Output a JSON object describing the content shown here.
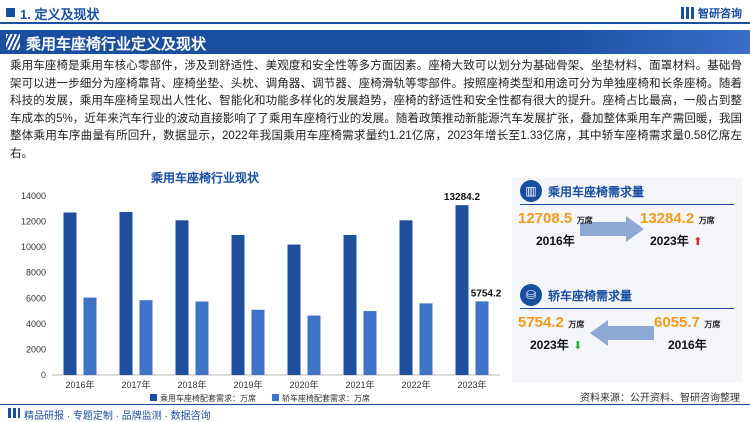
{
  "header": {
    "section_title": "1. 定义及现状",
    "brand": "智研咨询"
  },
  "banner": {
    "title": "乘用车座椅行业定义及现状"
  },
  "body_text": "乘用车座椅是乘用车核心零部件，涉及到舒适性、美观度和安全性等多方面因素。座椅大致可以划分为基础骨架、坐垫材料、面罩材料。基础骨架可以进一步细分为座椅靠背、座椅坐垫、头枕、调角器、调节器、座椅滑轨等零部件。按照座椅类型和用途可分为单独座椅和长条座椅。随着科技的发展，乘用车座椅呈现出人性化、智能化和功能多样化的发展趋势，座椅的舒适性和安全性都有很大的提升。座椅占比最高，一般占到整车成本的5%，近年来汽车行业的波动直接影响了了乘用车座椅行业的发展。随着政策推动新能源汽车发展扩张，叠加整体乘用车产需回暖，我国整体乘用车序曲量有所回升，数据显示，2022年我国乘用车座椅需求量约1.21亿席，2023年增长至1.33亿席，其中轿车座椅需求量0.58亿席左右。",
  "chart_data": {
    "type": "bar",
    "title": "乘用车座椅行业现状",
    "categories": [
      "2016年",
      "2017年",
      "2018年",
      "2019年",
      "2020年",
      "2021年",
      "2022年",
      "2023年"
    ],
    "series": [
      {
        "name": "乘用车座椅配套需求：万席",
        "values": [
          12708.5,
          12750,
          12100,
          10950,
          10200,
          10950,
          12100,
          13284.2
        ],
        "color": "#1d4f9c"
      },
      {
        "name": "轿车座椅配套需求：万席",
        "values": [
          6055.7,
          5850,
          5750,
          5100,
          4650,
          5000,
          5600,
          5754.2
        ],
        "color": "#3f73c6"
      }
    ],
    "data_labels": [
      {
        "series": 0,
        "index": 7,
        "text": "13284.2"
      },
      {
        "series": 1,
        "index": 7,
        "text": "5754.2"
      }
    ],
    "ylim": [
      0,
      14000
    ],
    "yticks": [
      0,
      2000,
      4000,
      6000,
      8000,
      10000,
      12000,
      14000
    ],
    "grid": false,
    "legend": "bottom"
  },
  "cards": [
    {
      "title": "乘用车座椅需求量",
      "from_value": "12708.5",
      "from_unit": "万席",
      "from_year": "2016年",
      "to_value": "13284.2",
      "to_unit": "万席",
      "to_year": "2023年",
      "trend": "up"
    },
    {
      "title": "轿车座椅需求量",
      "from_value": "5754.2",
      "from_unit": "万席",
      "from_year": "2023年",
      "to_value": "6055.7",
      "to_unit": "万席",
      "to_year": "2016年",
      "trend": "down"
    }
  ],
  "source": "资料来源：公开资料、智研咨询整理",
  "footer": {
    "tagline": "精品研报 · 专题定制 · 品牌监测 · 数据咨询"
  },
  "colors": {
    "brand": "#1a4fa0",
    "accent": "#f39a1c",
    "up": "#d9262c",
    "down": "#2aa84a"
  }
}
